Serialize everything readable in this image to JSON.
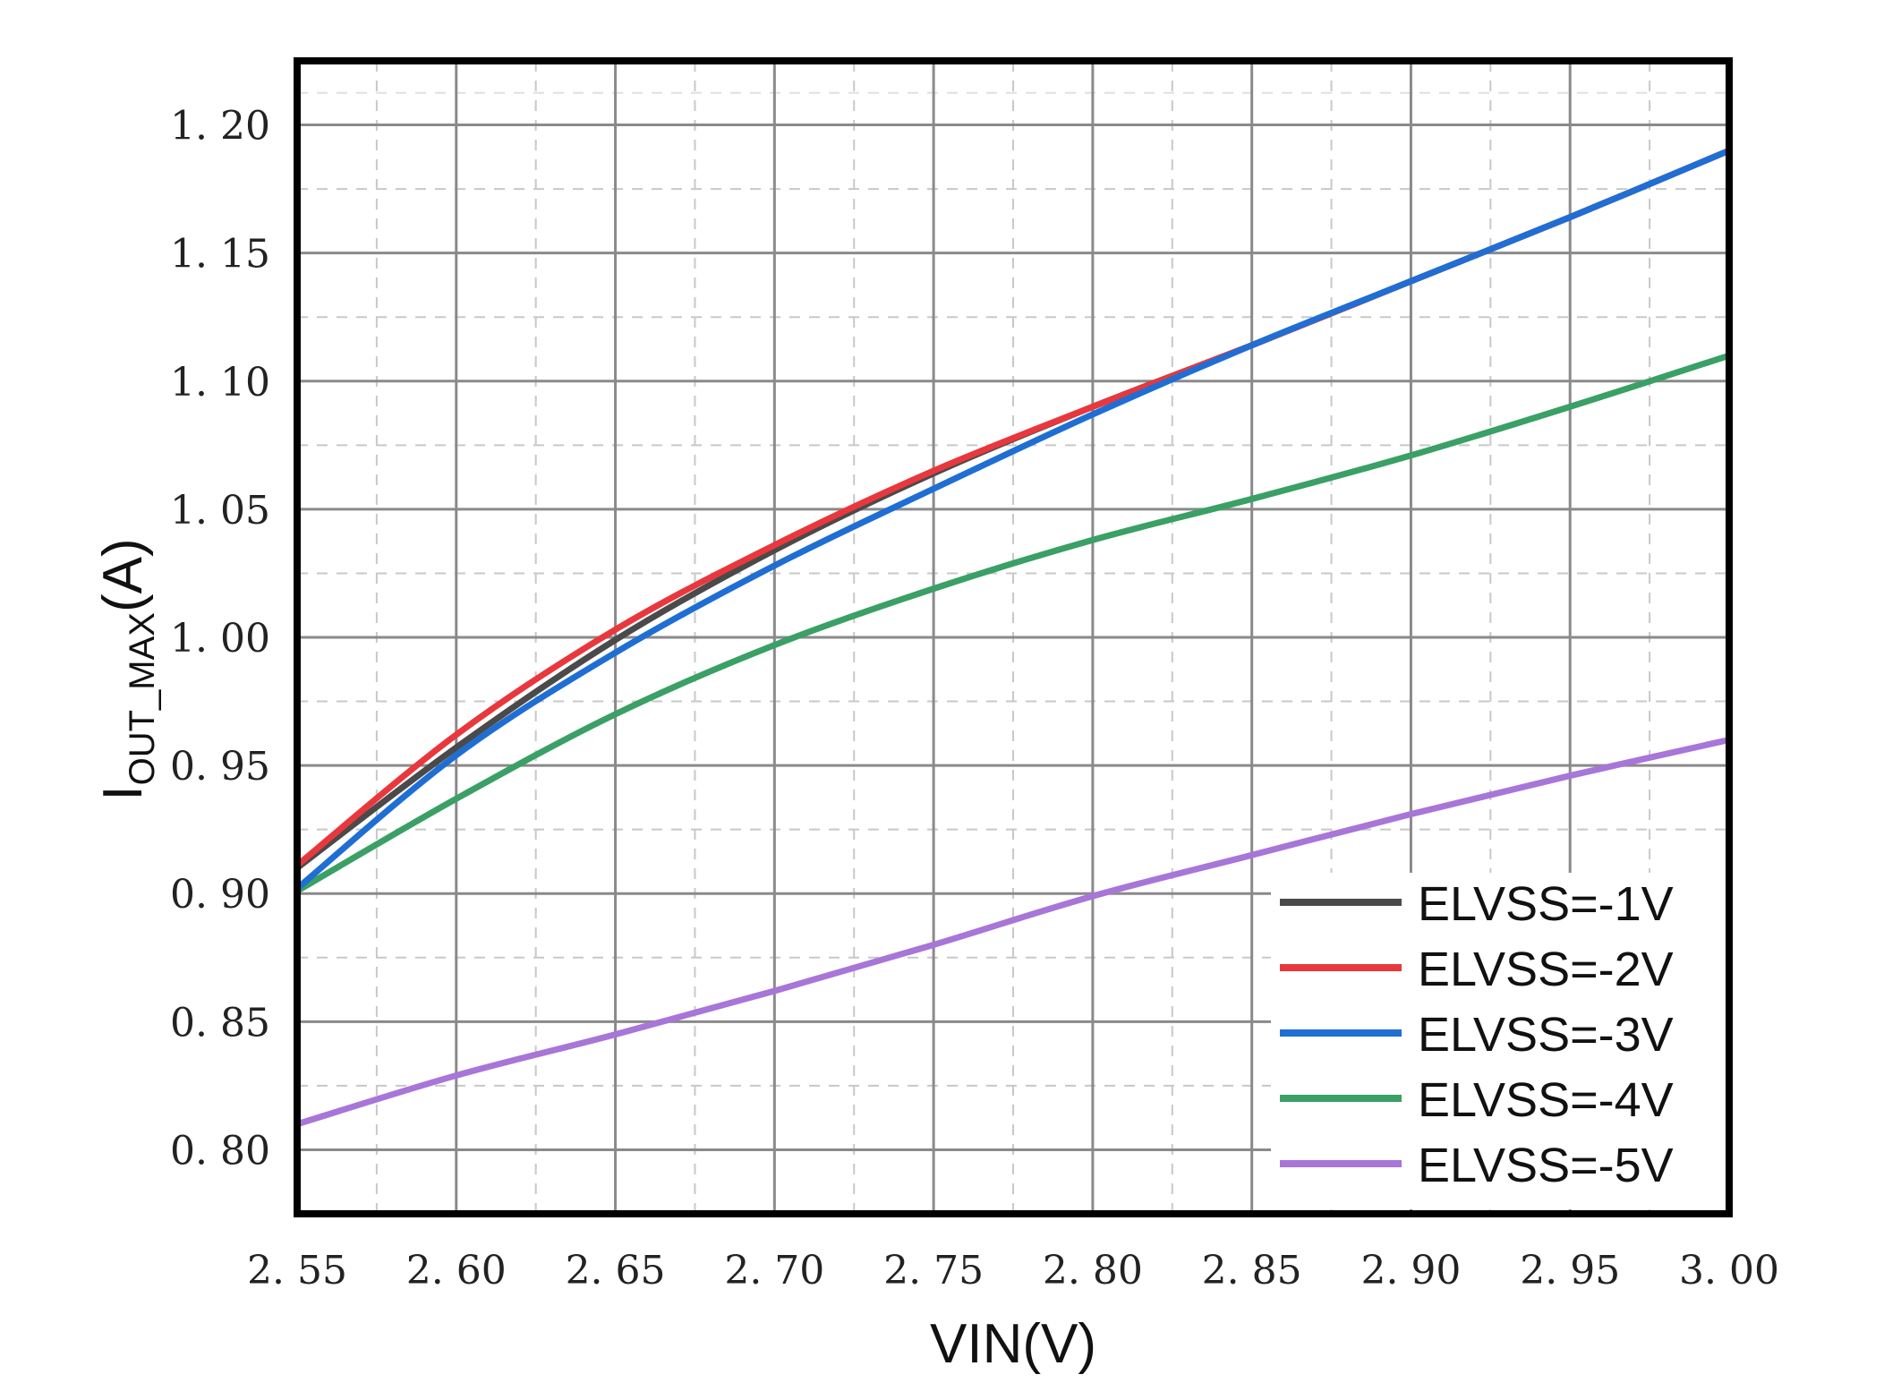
{
  "chart_data": {
    "type": "line",
    "title": "",
    "xlabel": "VIN(V)",
    "ylabel": {
      "main": "I",
      "sub": "OUT_MAX",
      "tail": "(A)"
    },
    "xlim": [
      2.55,
      3.0
    ],
    "ylim": [
      0.775,
      1.225
    ],
    "x_ticks": [
      "2. 55",
      "2. 60",
      "2. 65",
      "2. 70",
      "2. 75",
      "2. 80",
      "2. 85",
      "2. 90",
      "2. 95",
      "3. 00"
    ],
    "x_tick_values": [
      2.55,
      2.6,
      2.65,
      2.7,
      2.75,
      2.8,
      2.85,
      2.9,
      2.95,
      3.0
    ],
    "y_ticks": [
      "0. 80",
      "0. 85",
      "0. 90",
      "0. 95",
      "1. 00",
      "1. 05",
      "1. 10",
      "1. 15",
      "1. 20"
    ],
    "y_tick_values": [
      0.8,
      0.85,
      0.9,
      0.95,
      1.0,
      1.05,
      1.1,
      1.15,
      1.2
    ],
    "grid": true,
    "legend_position": "bottom-right",
    "series": [
      {
        "name": "ELVSS=-1V",
        "color": "#4a4a4a",
        "x": [
          2.55,
          2.6,
          2.65,
          2.7,
          2.75,
          2.8,
          2.85,
          2.9,
          2.95,
          3.0
        ],
        "y": [
          0.91,
          0.957,
          0.999,
          1.034,
          1.064,
          1.09,
          1.114,
          1.139,
          1.164,
          1.19
        ]
      },
      {
        "name": "ELVSS=-2V",
        "color": "#e8383d",
        "x": [
          2.55,
          2.6,
          2.65,
          2.7,
          2.75,
          2.8,
          2.85,
          2.9,
          2.95,
          3.0
        ],
        "y": [
          0.911,
          0.962,
          1.003,
          1.036,
          1.065,
          1.09,
          1.114,
          1.139,
          1.164,
          1.19
        ]
      },
      {
        "name": "ELVSS=-3V",
        "color": "#1f6ed4",
        "x": [
          2.55,
          2.6,
          2.65,
          2.7,
          2.75,
          2.8,
          2.85,
          2.9,
          2.95,
          3.0
        ],
        "y": [
          0.902,
          0.954,
          0.994,
          1.028,
          1.058,
          1.087,
          1.114,
          1.139,
          1.164,
          1.19
        ]
      },
      {
        "name": "ELVSS=-4V",
        "color": "#3aa066",
        "x": [
          2.55,
          2.6,
          2.65,
          2.7,
          2.75,
          2.8,
          2.85,
          2.9,
          2.95,
          3.0
        ],
        "y": [
          0.901,
          0.937,
          0.97,
          0.997,
          1.019,
          1.038,
          1.054,
          1.071,
          1.09,
          1.11
        ]
      },
      {
        "name": "ELVSS=-5V",
        "color": "#a776d8",
        "x": [
          2.55,
          2.6,
          2.65,
          2.7,
          2.75,
          2.8,
          2.85,
          2.9,
          2.95,
          3.0
        ],
        "y": [
          0.81,
          0.829,
          0.845,
          0.862,
          0.88,
          0.899,
          0.915,
          0.931,
          0.946,
          0.96
        ]
      }
    ]
  }
}
